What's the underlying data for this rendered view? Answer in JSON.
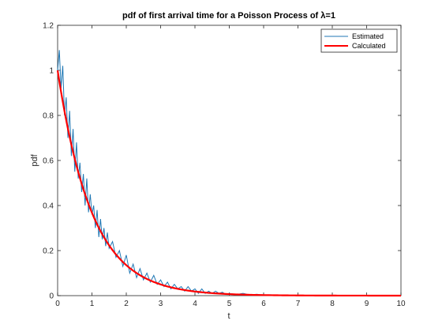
{
  "chart_data": {
    "type": "line",
    "title": "pdf of first arrival time for a Poisson Process of λ=1",
    "xlabel": "t",
    "ylabel": "pdf",
    "xlim": [
      0,
      10
    ],
    "ylim": [
      0,
      1.2
    ],
    "xticks": [
      "0",
      "1",
      "2",
      "3",
      "4",
      "5",
      "6",
      "7",
      "8",
      "9",
      "10"
    ],
    "yticks": [
      "0",
      "0.2",
      "0.4",
      "0.6",
      "0.8",
      "1",
      "1.2"
    ],
    "grid": false,
    "legend_position": "top-right",
    "series": [
      {
        "name": "Estimated",
        "color": "#1f77b4",
        "x": [
          0,
          0.05,
          0.1,
          0.15,
          0.2,
          0.25,
          0.3,
          0.35,
          0.4,
          0.45,
          0.5,
          0.55,
          0.6,
          0.65,
          0.7,
          0.75,
          0.8,
          0.85,
          0.9,
          0.95,
          1.0,
          1.05,
          1.1,
          1.15,
          1.2,
          1.25,
          1.3,
          1.35,
          1.4,
          1.45,
          1.5,
          1.6,
          1.7,
          1.8,
          1.9,
          2.0,
          2.1,
          2.2,
          2.3,
          2.4,
          2.5,
          2.6,
          2.7,
          2.8,
          2.9,
          3.0,
          3.1,
          3.2,
          3.3,
          3.4,
          3.5,
          3.6,
          3.7,
          3.8,
          3.9,
          4.0,
          4.1,
          4.2,
          4.3,
          4.4,
          4.5,
          4.6,
          4.7,
          4.8,
          4.9,
          5.0,
          5.2,
          5.4,
          5.6,
          5.8,
          6.0,
          6.2,
          6.4,
          6.6,
          6.8,
          7.0,
          7.5,
          8.0,
          8.5,
          9.0,
          9.5,
          10.0
        ],
        "y": [
          1.0,
          1.09,
          0.92,
          1.02,
          0.8,
          0.88,
          0.7,
          0.82,
          0.62,
          0.74,
          0.55,
          0.68,
          0.52,
          0.59,
          0.46,
          0.54,
          0.4,
          0.52,
          0.37,
          0.45,
          0.36,
          0.4,
          0.3,
          0.38,
          0.26,
          0.34,
          0.25,
          0.3,
          0.22,
          0.28,
          0.21,
          0.24,
          0.17,
          0.2,
          0.13,
          0.18,
          0.1,
          0.14,
          0.08,
          0.12,
          0.07,
          0.1,
          0.06,
          0.09,
          0.05,
          0.07,
          0.04,
          0.06,
          0.03,
          0.05,
          0.03,
          0.04,
          0.02,
          0.04,
          0.02,
          0.03,
          0.01,
          0.03,
          0.01,
          0.02,
          0.01,
          0.02,
          0.01,
          0.015,
          0.005,
          0.01,
          0.005,
          0.01,
          0.003,
          0.006,
          0.002,
          0.004,
          0.002,
          0.003,
          0.001,
          0.002,
          0.001,
          0.0,
          0.0,
          0.0,
          0.0,
          0.0
        ]
      },
      {
        "name": "Calculated",
        "color": "#ff0000",
        "function": "exp(-t)"
      }
    ]
  }
}
